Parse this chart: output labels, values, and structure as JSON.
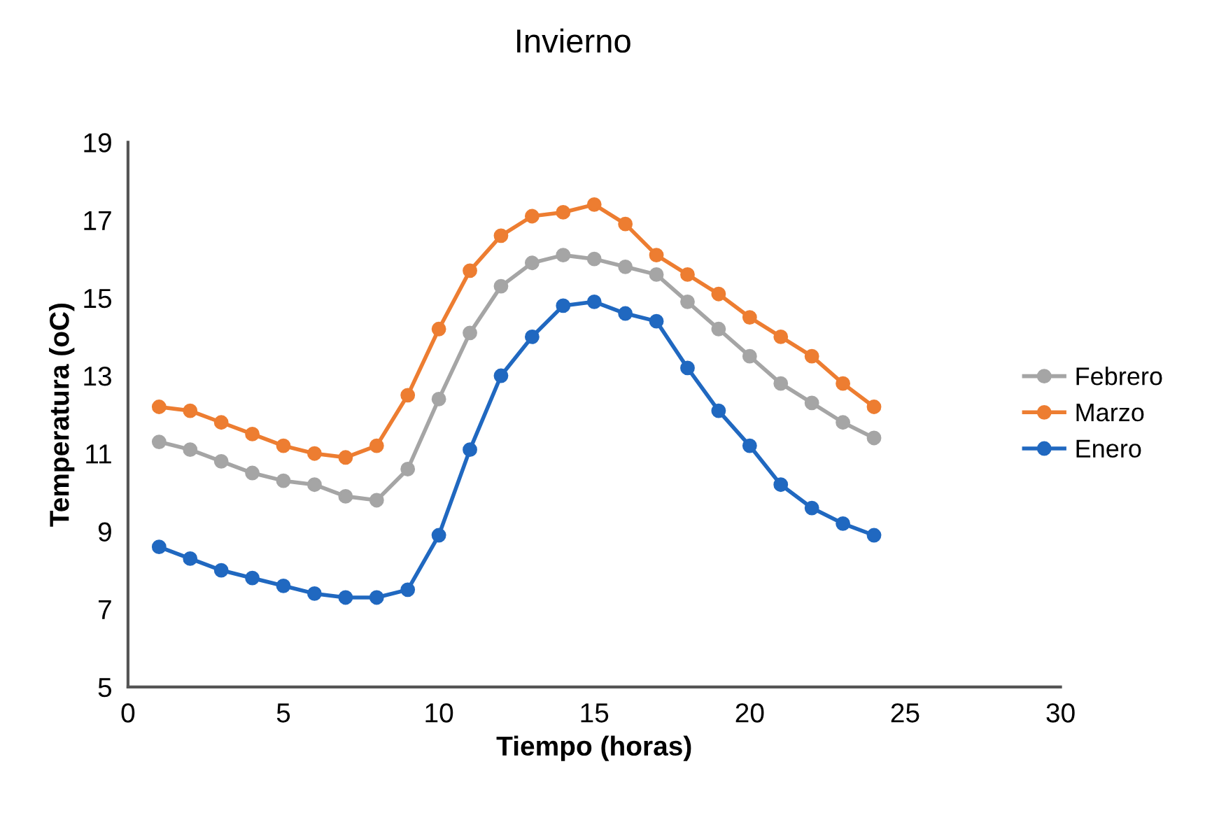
{
  "chart_data": {
    "type": "line",
    "title": "Invierno",
    "xlabel": "Tiempo (horas)",
    "ylabel": "Temperatura (oC)",
    "x": [
      1,
      2,
      3,
      4,
      5,
      6,
      7,
      8,
      9,
      10,
      11,
      12,
      13,
      14,
      15,
      16,
      17,
      18,
      19,
      20,
      21,
      22,
      23,
      24
    ],
    "series": [
      {
        "name": "Febrero",
        "color": "#a5a5a5",
        "values": [
          11.3,
          11.1,
          10.8,
          10.5,
          10.3,
          10.2,
          9.9,
          9.8,
          10.6,
          12.4,
          14.1,
          15.3,
          15.9,
          16.1,
          16.0,
          15.8,
          15.6,
          14.9,
          14.2,
          13.5,
          12.8,
          12.3,
          11.8,
          11.4
        ]
      },
      {
        "name": "Marzo",
        "color": "#ed7d31",
        "values": [
          12.2,
          12.1,
          11.8,
          11.5,
          11.2,
          11.0,
          10.9,
          11.2,
          12.5,
          14.2,
          15.7,
          16.6,
          17.1,
          17.2,
          17.4,
          16.9,
          16.1,
          15.6,
          15.1,
          14.5,
          14.0,
          13.5,
          12.8,
          12.2
        ]
      },
      {
        "name": "Enero",
        "color": "#2068c0",
        "values": [
          8.6,
          8.3,
          8.0,
          7.8,
          7.6,
          7.4,
          7.3,
          7.3,
          7.5,
          8.9,
          11.1,
          13.0,
          14.0,
          14.8,
          14.9,
          14.6,
          14.4,
          13.2,
          12.1,
          11.2,
          10.2,
          9.6,
          9.2,
          8.9
        ]
      }
    ],
    "xlim": [
      0,
      30
    ],
    "xticks": [
      0,
      5,
      10,
      15,
      20,
      25,
      30
    ],
    "ylim": [
      5,
      19
    ],
    "yticks": [
      5,
      7,
      9,
      11,
      13,
      15,
      17,
      19
    ],
    "grid": false,
    "legend": "right",
    "marker": "circle",
    "line_style": "solid"
  }
}
